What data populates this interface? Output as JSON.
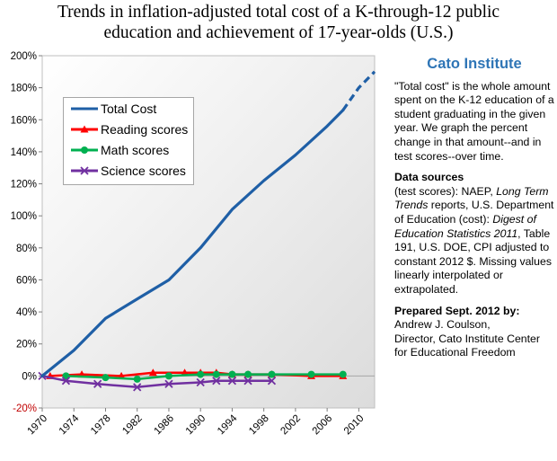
{
  "chart_data": {
    "type": "line",
    "title_lines": [
      "Trends in inflation-adjusted total cost of a K-through-12 public",
      "education and achievement of 17-year-olds  (U.S.)"
    ],
    "title": "Trends in inflation-adjusted total cost of a K-through-12 public education and achievement of 17-year-olds  (U.S.)",
    "xlabel": "",
    "ylabel": "",
    "xlim": [
      1970,
      2012
    ],
    "ylim": [
      -20,
      200
    ],
    "x_ticks": [
      "1970",
      "1974",
      "1978",
      "1982",
      "1986",
      "1990",
      "1994",
      "1998",
      "2002",
      "2006",
      "2010"
    ],
    "y_ticks": [
      "-20%",
      "0%",
      "20%",
      "40%",
      "60%",
      "80%",
      "100%",
      "120%",
      "140%",
      "160%",
      "180%",
      "200%"
    ],
    "grid": false,
    "legend_position": "upper-left",
    "series": [
      {
        "name": "Total Cost",
        "color": "#1f5fa6",
        "points": [
          {
            "x": 1970,
            "y": 0
          },
          {
            "x": 1974,
            "y": 16
          },
          {
            "x": 1978,
            "y": 36
          },
          {
            "x": 1982,
            "y": 48
          },
          {
            "x": 1986,
            "y": 60
          },
          {
            "x": 1990,
            "y": 80
          },
          {
            "x": 1994,
            "y": 104
          },
          {
            "x": 1998,
            "y": 122
          },
          {
            "x": 2002,
            "y": 138
          },
          {
            "x": 2006,
            "y": 156
          },
          {
            "x": 2008,
            "y": 166
          }
        ],
        "dashed_extension": [
          {
            "x": 2008,
            "y": 166
          },
          {
            "x": 2010,
            "y": 180
          },
          {
            "x": 2012,
            "y": 190
          }
        ]
      },
      {
        "name": "Reading scores",
        "color": "#ff0000",
        "marker": "triangle",
        "points": [
          {
            "x": 1971,
            "y": 0
          },
          {
            "x": 1975,
            "y": 1
          },
          {
            "x": 1980,
            "y": 0
          },
          {
            "x": 1984,
            "y": 2
          },
          {
            "x": 1988,
            "y": 2
          },
          {
            "x": 1990,
            "y": 2
          },
          {
            "x": 1992,
            "y": 2
          },
          {
            "x": 1994,
            "y": 1
          },
          {
            "x": 1996,
            "y": 1
          },
          {
            "x": 1999,
            "y": 1
          },
          {
            "x": 2004,
            "y": 0
          },
          {
            "x": 2008,
            "y": 0
          }
        ]
      },
      {
        "name": "Math scores",
        "color": "#00b050",
        "marker": "circle",
        "points": [
          {
            "x": 1973,
            "y": 0
          },
          {
            "x": 1978,
            "y": -1
          },
          {
            "x": 1982,
            "y": -2
          },
          {
            "x": 1986,
            "y": 0
          },
          {
            "x": 1990,
            "y": 1
          },
          {
            "x": 1992,
            "y": 1
          },
          {
            "x": 1994,
            "y": 1
          },
          {
            "x": 1996,
            "y": 1
          },
          {
            "x": 1999,
            "y": 1
          },
          {
            "x": 2004,
            "y": 1
          },
          {
            "x": 2008,
            "y": 1
          }
        ]
      },
      {
        "name": "Science scores",
        "color": "#7030a0",
        "marker": "x",
        "points": [
          {
            "x": 1970,
            "y": 0
          },
          {
            "x": 1973,
            "y": -3
          },
          {
            "x": 1977,
            "y": -5
          },
          {
            "x": 1982,
            "y": -7
          },
          {
            "x": 1986,
            "y": -5
          },
          {
            "x": 1990,
            "y": -4
          },
          {
            "x": 1992,
            "y": -3
          },
          {
            "x": 1994,
            "y": -3
          },
          {
            "x": 1996,
            "y": -3
          },
          {
            "x": 1999,
            "y": -3
          }
        ]
      }
    ]
  },
  "sidebar": {
    "org": "Cato Institute",
    "intro": "\"Total cost\" is the whole amount spent on the K-12 education of a student graduating in the given year. We graph the percent change in that amount--and in test scores--over time.",
    "sources_heading": "Data sources",
    "sources_1": "(test scores): NAEP, ",
    "sources_1_italic": "Long Term Trends",
    "sources_2": " reports, U.S. Department of Education (cost): ",
    "sources_2_italic": "Digest of Education Statistics 2011",
    "sources_3": ", Table 191, U.S. DOE, CPI adjusted to constant 2012 $.  Missing values linearly interpolated or extrapolated.",
    "prepared_heading": "Prepared Sept. 2012 by:",
    "prepared_lines": [
      "Andrew J. Coulson,",
      "Director, Cato Institute Center",
      "for Educational Freedom"
    ]
  }
}
